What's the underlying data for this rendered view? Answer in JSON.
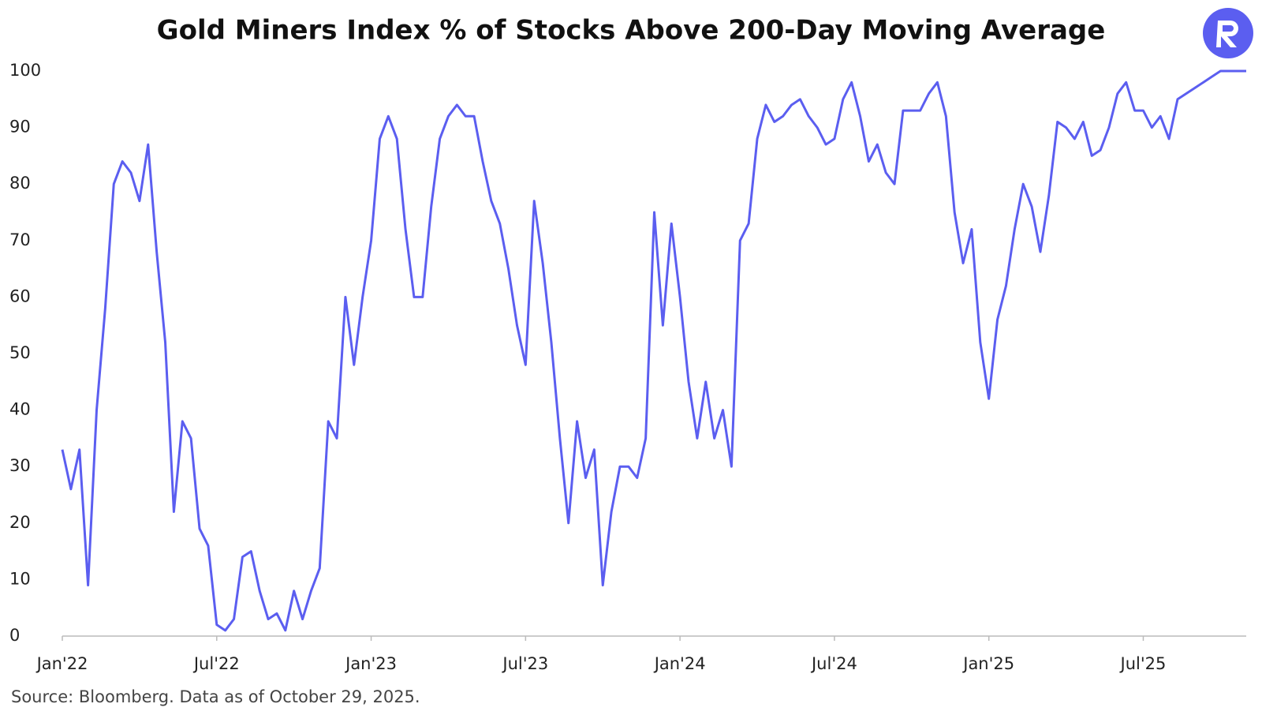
{
  "chart_data": {
    "type": "line",
    "title": "Gold Miners Index % of Stocks Above 200-Day Moving Average",
    "source": "Source: Bloomberg. Data as of October 29, 2025.",
    "x": [
      0,
      1,
      2,
      3,
      4,
      5,
      6,
      7,
      8,
      9,
      10,
      11,
      12,
      13,
      14,
      15,
      16,
      17,
      18,
      19,
      20,
      21,
      22,
      23,
      24,
      25,
      26,
      27,
      28,
      29,
      30,
      31,
      32,
      33,
      34,
      35,
      36,
      37,
      38,
      39,
      40,
      41,
      42,
      43,
      44,
      45,
      46,
      47,
      48,
      49,
      50,
      51,
      52,
      53,
      54,
      55,
      56,
      57,
      58,
      59,
      60,
      61,
      62,
      63,
      64,
      65,
      66,
      67,
      68,
      69,
      70,
      71,
      72,
      73,
      74,
      75,
      76,
      77,
      78,
      79,
      80,
      81,
      82,
      83,
      84,
      85,
      86,
      87,
      88,
      89,
      90,
      91,
      92,
      93,
      94,
      95,
      96,
      97,
      98,
      99,
      100,
      101,
      102,
      103,
      104,
      105,
      106,
      107,
      108,
      109,
      110,
      111,
      112,
      113,
      114,
      115,
      116,
      117,
      118,
      119,
      120,
      121,
      122,
      123,
      124,
      125,
      126,
      127,
      128,
      129,
      130,
      131,
      132,
      133,
      134,
      135,
      136,
      137,
      138
    ],
    "series": [
      {
        "color": "#5b5ef0",
        "values": [
          33,
          26,
          33,
          9,
          40,
          58,
          80,
          84,
          82,
          77,
          87,
          68,
          52,
          22,
          38,
          35,
          19,
          16,
          2,
          1,
          3,
          14,
          15,
          8,
          3,
          4,
          1,
          8,
          3,
          8,
          12,
          38,
          35,
          60,
          48,
          60,
          70,
          88,
          92,
          88,
          72,
          60,
          60,
          76,
          88,
          92,
          94,
          92,
          92,
          84,
          77,
          73,
          65,
          55,
          48,
          77,
          66,
          52,
          35,
          20,
          38,
          28,
          33,
          9,
          22,
          30,
          30,
          28,
          35,
          75,
          55,
          73,
          60,
          45,
          35,
          45,
          35,
          40,
          30,
          70,
          73,
          88,
          94,
          91,
          92,
          94,
          95,
          92,
          90,
          87,
          88,
          95,
          98,
          92,
          84,
          87,
          82,
          80,
          93,
          93,
          93,
          96,
          98,
          92,
          75,
          66,
          72,
          52,
          42,
          56,
          62,
          72,
          80,
          76,
          68,
          78,
          91,
          90,
          88,
          91,
          85,
          86,
          90,
          96,
          98,
          93,
          93,
          90,
          92,
          88,
          95,
          96,
          97,
          98,
          99,
          100,
          100,
          100,
          100
        ]
      }
    ],
    "xlim": [
      0,
      138
    ],
    "xticks": [
      {
        "value": 0,
        "label": "Jan'22"
      },
      {
        "value": 18,
        "label": "Jul'22"
      },
      {
        "value": 36,
        "label": "Jan'23"
      },
      {
        "value": 54,
        "label": "Jul'23"
      },
      {
        "value": 72,
        "label": "Jan'24"
      },
      {
        "value": 90,
        "label": "Jul'24"
      },
      {
        "value": 108,
        "label": "Jan'25"
      },
      {
        "value": 126,
        "label": "Jul'25"
      }
    ],
    "ylim": [
      0,
      100
    ],
    "yticks": [
      0,
      10,
      20,
      30,
      40,
      50,
      60,
      70,
      80,
      90,
      100
    ]
  }
}
